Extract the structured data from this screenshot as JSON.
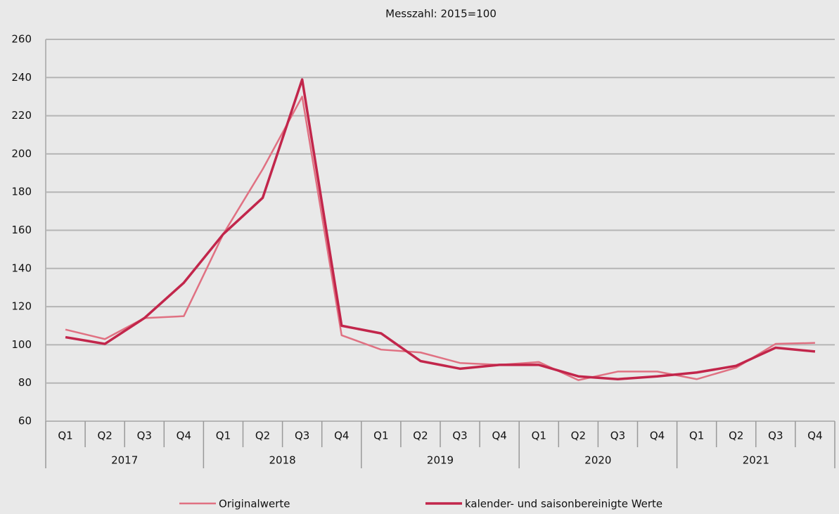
{
  "chart_data": {
    "type": "line",
    "title": "Messzahl: 2015=100",
    "categories": [
      "Q1",
      "Q2",
      "Q3",
      "Q4",
      "Q1",
      "Q2",
      "Q3",
      "Q4",
      "Q1",
      "Q2",
      "Q3",
      "Q4",
      "Q1",
      "Q2",
      "Q3",
      "Q4",
      "Q1",
      "Q2",
      "Q3",
      "Q4"
    ],
    "groups": [
      "2017",
      "2018",
      "2019",
      "2020",
      "2021"
    ],
    "series": [
      {
        "name": "Originalwerte",
        "color": "#e07182",
        "values": [
          108,
          103,
          114,
          115,
          158,
          192,
          230,
          105,
          97.5,
          96,
          90.5,
          89.5,
          91,
          81.5,
          86,
          86,
          82,
          88,
          100.5,
          101
        ]
      },
      {
        "name": "kalender- und saisonbereinigte Werte",
        "color": "#c2264b",
        "values": [
          104,
          100.5,
          114,
          132.5,
          158,
          177,
          239,
          110,
          106,
          91.5,
          87.5,
          89.5,
          89.5,
          83.5,
          82,
          83.5,
          85.5,
          89,
          98.5,
          96.5
        ]
      }
    ],
    "ylim": [
      60,
      260
    ],
    "yticks": [
      60,
      80,
      100,
      120,
      140,
      160,
      180,
      200,
      220,
      240,
      260
    ],
    "grid": true,
    "legend": "bottom"
  }
}
